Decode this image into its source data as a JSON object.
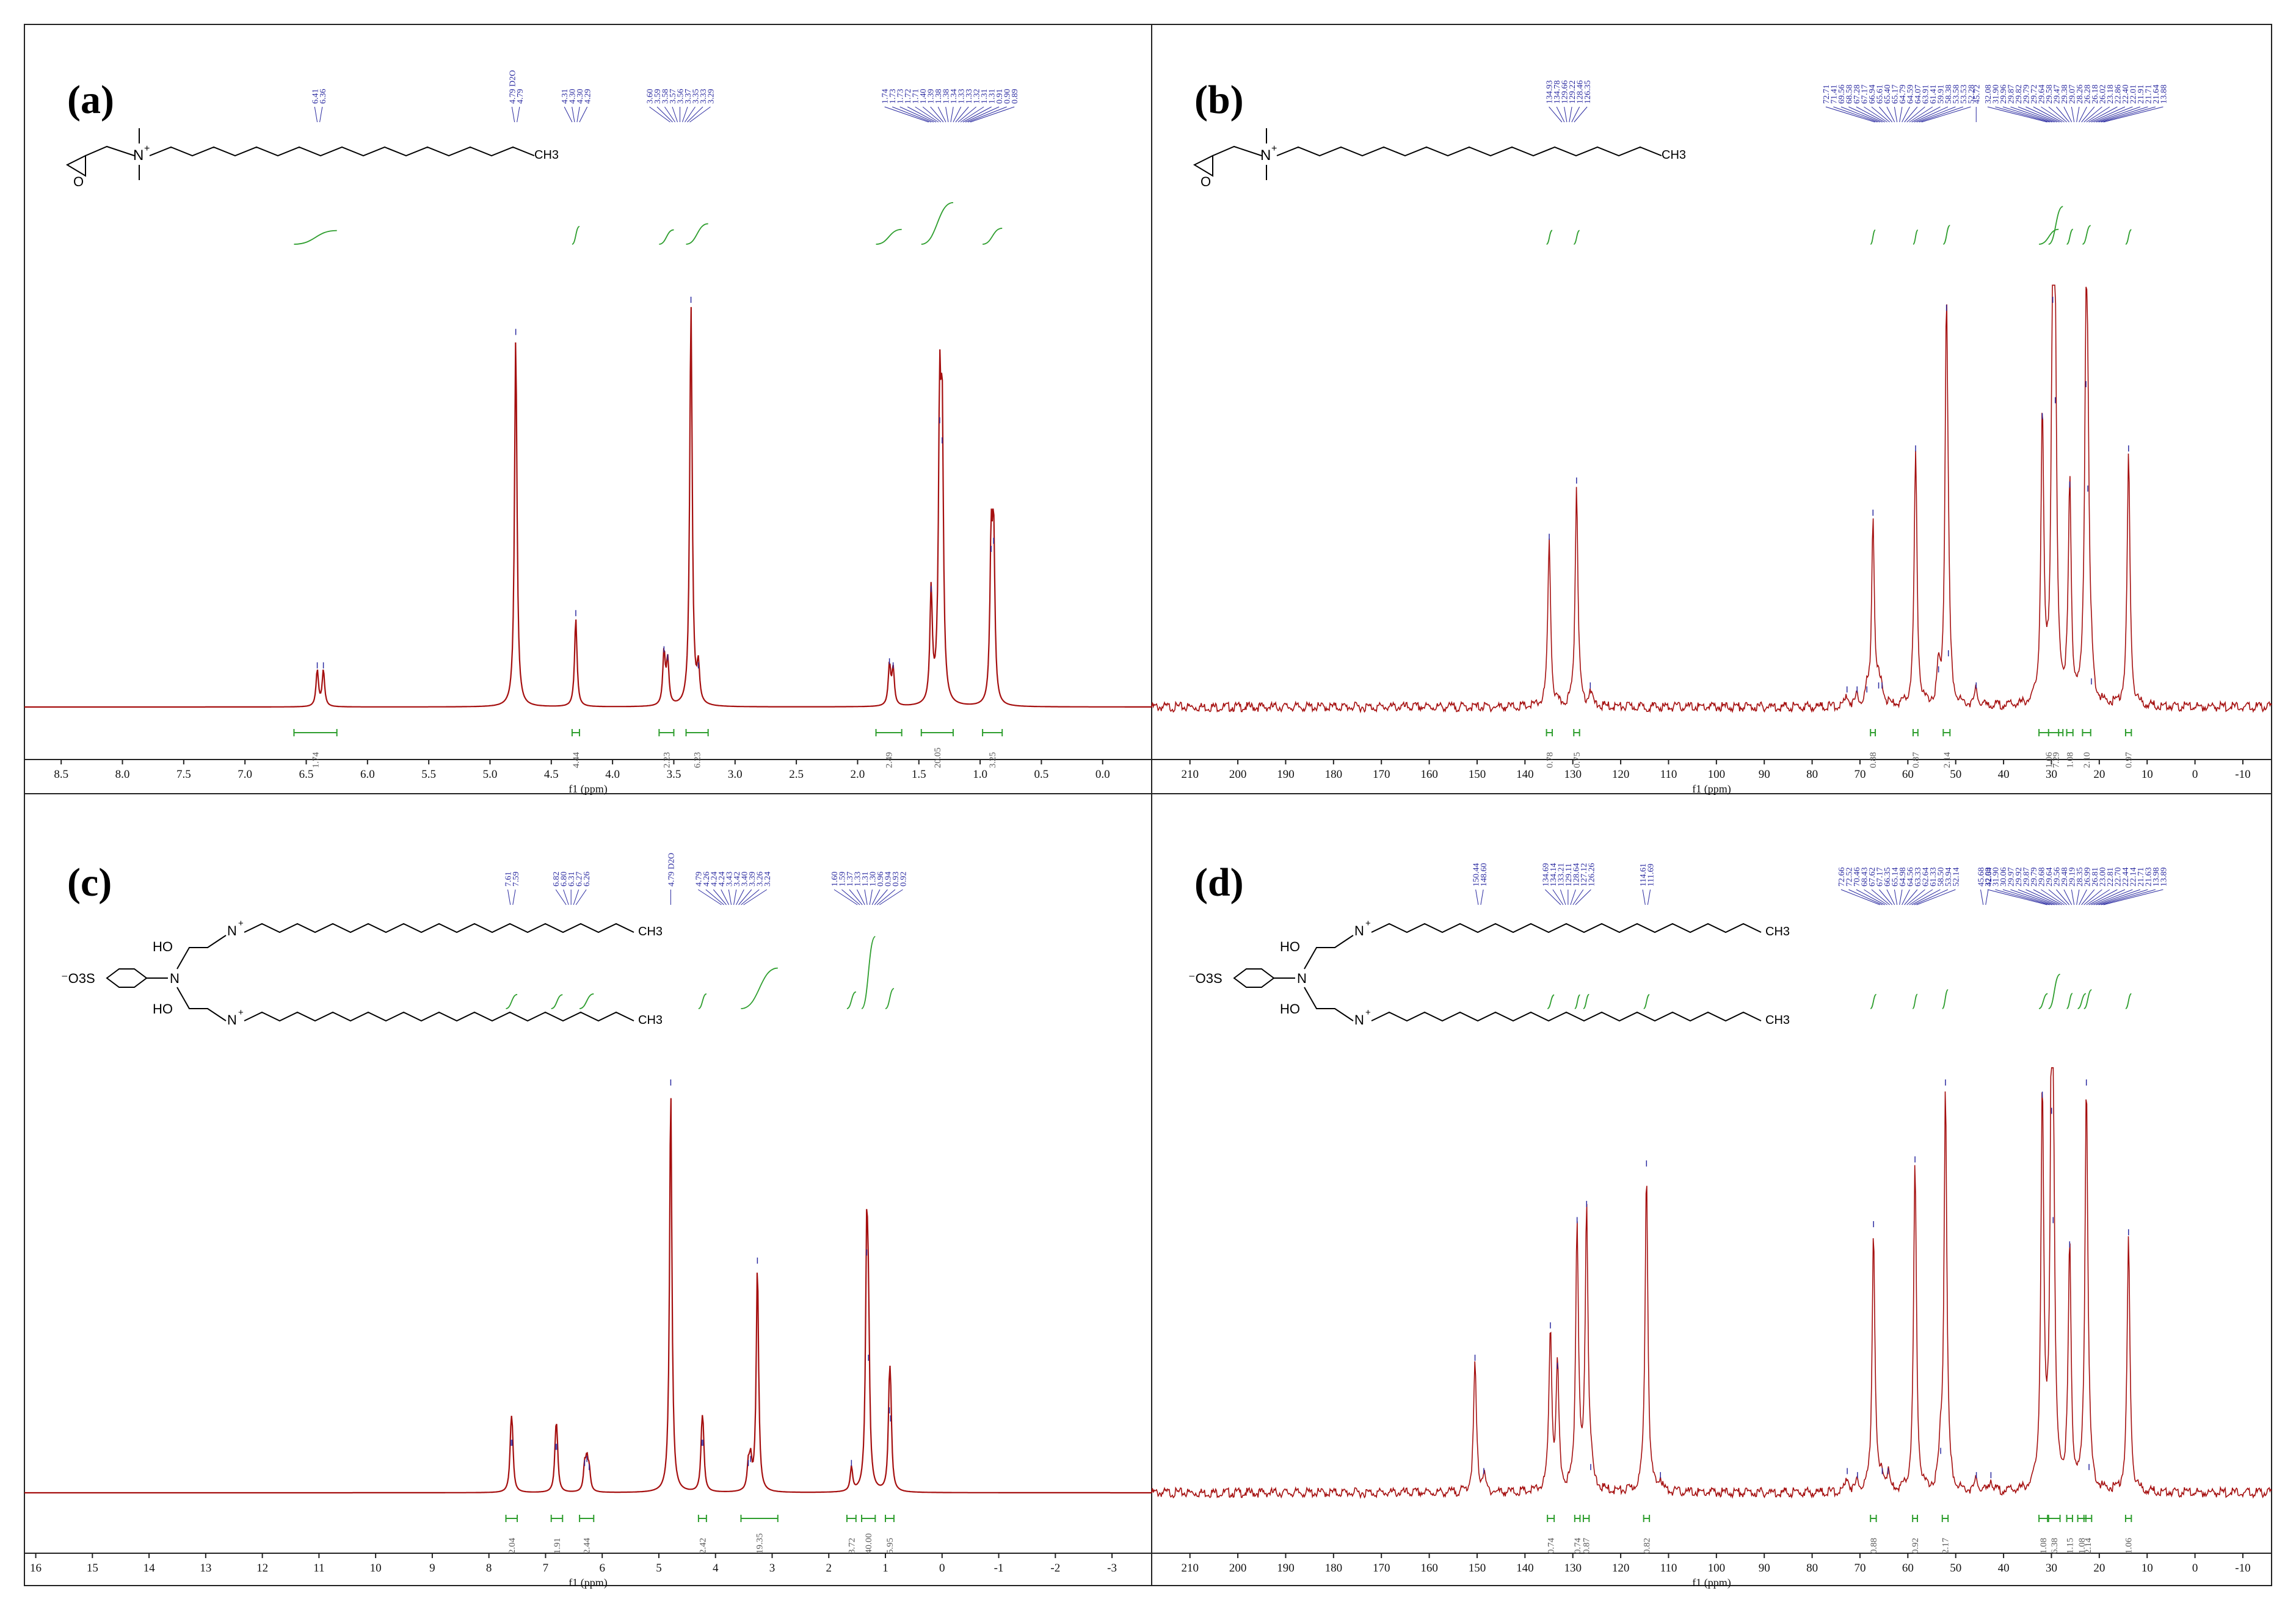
{
  "figure": {
    "xunit_label": "f1 (ppm)"
  },
  "chart_data": [
    {
      "id": "a",
      "type": "line",
      "panel_label": "(a)",
      "spectrum": "1H NMR",
      "xlabel": "f1 (ppm)",
      "xlim": [
        8.8,
        -0.4
      ],
      "xticks": [
        8.5,
        8.0,
        7.5,
        7.0,
        6.5,
        6.0,
        5.5,
        5.0,
        4.5,
        4.0,
        3.5,
        3.0,
        2.5,
        2.0,
        1.5,
        1.0,
        0.5,
        0.0
      ],
      "xtick_labels": [
        "8.5",
        "8.0",
        "7.5",
        "7.0",
        "6.5",
        "6.0",
        "5.5",
        "5.0",
        "4.5",
        "4.0",
        "3.5",
        "3.0",
        "2.5",
        "2.0",
        "1.5",
        "1.0",
        "0.5",
        "0.0"
      ],
      "ylim": [
        0,
        1
      ],
      "peaks": [
        {
          "x": 6.41,
          "h": 0.09
        },
        {
          "x": 6.36,
          "h": 0.09
        },
        {
          "x": 4.79,
          "h": 0.92
        },
        {
          "x": 4.3,
          "h": 0.22
        },
        {
          "x": 3.58,
          "h": 0.13
        },
        {
          "x": 3.55,
          "h": 0.11
        },
        {
          "x": 3.36,
          "h": 1.0
        },
        {
          "x": 3.3,
          "h": 0.09
        },
        {
          "x": 1.74,
          "h": 0.1
        },
        {
          "x": 1.71,
          "h": 0.09
        },
        {
          "x": 1.4,
          "h": 0.28
        },
        {
          "x": 1.33,
          "h": 0.7
        },
        {
          "x": 1.31,
          "h": 0.65
        },
        {
          "x": 0.91,
          "h": 0.38
        },
        {
          "x": 0.89,
          "h": 0.4
        }
      ],
      "peak_labels": [
        {
          "x": 6.4,
          "items": [
            "6.41",
            "6.36"
          ]
        },
        {
          "x": 4.79,
          "items": [
            "4.79 D2O",
            "4.79"
          ]
        },
        {
          "x": 4.3,
          "items": [
            "4.31",
            "4.30",
            "4.30",
            "4.29"
          ]
        },
        {
          "x": 3.45,
          "items": [
            "3.60",
            "3.59",
            "3.58",
            "3.57",
            "3.56",
            "3.37",
            "3.35",
            "3.33",
            "3.29"
          ]
        },
        {
          "x": 1.25,
          "items": [
            "1.74",
            "1.73",
            "1.73",
            "1.72",
            "1.71",
            "1.40",
            "1.39",
            "1.38",
            "1.38",
            "1.34",
            "1.33",
            "1.33",
            "1.32",
            "1.31",
            "1.31",
            "0.91",
            "0.90",
            "0.89"
          ]
        }
      ],
      "integrals": [
        {
          "from": 6.6,
          "to": 6.25,
          "value": "1.74"
        },
        {
          "from": 4.33,
          "to": 4.27,
          "value": "4.44"
        },
        {
          "from": 3.62,
          "to": 3.5,
          "value": "2.23"
        },
        {
          "from": 3.4,
          "to": 3.22,
          "value": "6.23"
        },
        {
          "from": 1.85,
          "to": 1.64,
          "value": "2.49"
        },
        {
          "from": 1.48,
          "to": 1.22,
          "value": "20.05"
        },
        {
          "from": 0.98,
          "to": 0.82,
          "value": "3.25"
        }
      ],
      "structure": "mono",
      "structure_text": {
        "n_plus": "N",
        "plus": "+",
        "ch3": "CH3"
      }
    },
    {
      "id": "b",
      "type": "line",
      "panel_label": "(b)",
      "spectrum": "13C NMR",
      "xlabel": "f1 (ppm)",
      "xlim": [
        218,
        -16
      ],
      "xticks": [
        210,
        200,
        190,
        180,
        170,
        160,
        150,
        140,
        130,
        120,
        110,
        100,
        90,
        80,
        70,
        60,
        50,
        40,
        30,
        20,
        10,
        0,
        -10
      ],
      "xtick_labels": [
        "210",
        "200",
        "190",
        "180",
        "170",
        "160",
        "150",
        "140",
        "130",
        "120",
        "110",
        "100",
        "90",
        "80",
        "70",
        "60",
        "50",
        "40",
        "30",
        "20",
        "10",
        "0",
        "-10"
      ],
      "ylim": [
        0,
        1
      ],
      "peaks": [
        {
          "x": 134.93,
          "h": 0.41
        },
        {
          "x": 129.22,
          "h": 0.55
        },
        {
          "x": 126.35,
          "h": 0.04
        },
        {
          "x": 72.71,
          "h": 0.03
        },
        {
          "x": 70.6,
          "h": 0.03
        },
        {
          "x": 68.56,
          "h": 0.03
        },
        {
          "x": 67.28,
          "h": 0.47
        },
        {
          "x": 66.1,
          "h": 0.04
        },
        {
          "x": 65.4,
          "h": 0.04
        },
        {
          "x": 58.38,
          "h": 0.63
        },
        {
          "x": 53.58,
          "h": 0.08
        },
        {
          "x": 51.93,
          "h": 0.98
        },
        {
          "x": 51.53,
          "h": 0.12
        },
        {
          "x": 45.72,
          "h": 0.04
        },
        {
          "x": 31.9,
          "h": 0.71
        },
        {
          "x": 29.72,
          "h": 1.0
        },
        {
          "x": 29.2,
          "h": 0.75
        },
        {
          "x": 26.17,
          "h": 0.54
        },
        {
          "x": 22.78,
          "h": 0.79
        },
        {
          "x": 22.4,
          "h": 0.53
        },
        {
          "x": 21.64,
          "h": 0.05
        },
        {
          "x": 13.88,
          "h": 0.63
        }
      ],
      "peak_labels": [
        {
          "x": 131,
          "items": [
            "134.93",
            "134.78",
            "129.66",
            "129.22",
            "128.46",
            "126.35"
          ]
        },
        {
          "x": 62,
          "items": [
            "72.71",
            "71.41",
            "69.56",
            "68.58",
            "67.28",
            "67.17",
            "66.94",
            "65.61",
            "65.40",
            "65.17",
            "64.79",
            "64.59",
            "64.07",
            "63.91",
            "61.41",
            "59.91",
            "58.38",
            "53.58",
            "53.53",
            "52.28"
          ]
        },
        {
          "x": 45.72,
          "items": [
            "45.72"
          ]
        },
        {
          "x": 25,
          "items": [
            "32.08",
            "31.90",
            "29.96",
            "29.87",
            "29.82",
            "29.79",
            "29.72",
            "29.64",
            "29.58",
            "29.47",
            "29.38",
            "29.07",
            "28.26",
            "26.28",
            "26.18",
            "26.02",
            "23.18",
            "22.86",
            "22.40",
            "22.01",
            "21.91",
            "21.71",
            "21.64",
            "13.88"
          ]
        }
      ],
      "integrals": [
        {
          "from": 135.5,
          "to": 134.3,
          "value": "0.78"
        },
        {
          "from": 129.8,
          "to": 128.6,
          "value": "0.75"
        },
        {
          "from": 67.8,
          "to": 66.8,
          "value": "0.88"
        },
        {
          "from": 58.9,
          "to": 57.9,
          "value": "0.87"
        },
        {
          "from": 52.6,
          "to": 51.2,
          "value": "2.14"
        },
        {
          "from": 32.6,
          "to": 28.5,
          "value": "1.06"
        },
        {
          "from": 30.6,
          "to": 27.6,
          "value": "7.29"
        },
        {
          "from": 26.8,
          "to": 25.5,
          "value": "1.08"
        },
        {
          "from": 23.5,
          "to": 21.8,
          "value": "2.10"
        },
        {
          "from": 14.5,
          "to": 13.3,
          "value": "0.97"
        }
      ],
      "structure": "mono",
      "structure_text": {
        "n_plus": "N",
        "plus": "+",
        "ch3": "CH3"
      }
    },
    {
      "id": "c",
      "type": "line",
      "panel_label": "(c)",
      "spectrum": "1H NMR",
      "xlabel": "f1 (ppm)",
      "xlim": [
        16.2,
        -3.7
      ],
      "xticks": [
        16,
        15,
        14,
        13,
        12,
        11,
        10,
        9,
        8,
        7,
        6,
        5,
        4,
        3,
        2,
        1,
        0,
        -1,
        -2,
        -3
      ],
      "xtick_labels": [
        "16",
        "15",
        "14",
        "13",
        "12",
        "11",
        "10",
        "9",
        "8",
        "7",
        "6",
        "5",
        "4",
        "3",
        "2",
        "1",
        "0",
        "-1",
        "-2",
        "-3"
      ],
      "ylim": [
        0,
        1
      ],
      "peaks": [
        {
          "x": 7.61,
          "h": 0.11
        },
        {
          "x": 7.59,
          "h": 0.11
        },
        {
          "x": 6.82,
          "h": 0.1
        },
        {
          "x": 6.8,
          "h": 0.1
        },
        {
          "x": 6.31,
          "h": 0.06
        },
        {
          "x": 6.27,
          "h": 0.07
        },
        {
          "x": 6.23,
          "h": 0.05
        },
        {
          "x": 4.79,
          "h": 1.0
        },
        {
          "x": 4.24,
          "h": 0.11
        },
        {
          "x": 4.22,
          "h": 0.11
        },
        {
          "x": 3.42,
          "h": 0.06
        },
        {
          "x": 3.38,
          "h": 0.07
        },
        {
          "x": 3.26,
          "h": 0.56
        },
        {
          "x": 1.6,
          "h": 0.06
        },
        {
          "x": 1.33,
          "h": 0.58
        },
        {
          "x": 1.3,
          "h": 0.32
        },
        {
          "x": 0.93,
          "h": 0.19
        },
        {
          "x": 0.91,
          "h": 0.17
        }
      ],
      "peak_labels": [
        {
          "x": 7.6,
          "items": [
            "7.61",
            "7.59"
          ]
        },
        {
          "x": 6.55,
          "items": [
            "6.82",
            "6.80",
            "6.31",
            "6.27",
            "6.26"
          ]
        },
        {
          "x": 4.79,
          "items": [
            "4.79 D2O"
          ]
        },
        {
          "x": 3.7,
          "items": [
            "4.79",
            "4.26",
            "4.24",
            "4.24",
            "3.43",
            "3.42",
            "3.40",
            "3.39",
            "3.26",
            "3.24"
          ]
        },
        {
          "x": 1.3,
          "items": [
            "1.60",
            "1.59",
            "1.37",
            "1.33",
            "1.31",
            "1.30",
            "0.96",
            "0.94",
            "0.93",
            "0.92"
          ]
        }
      ],
      "integrals": [
        {
          "from": 7.7,
          "to": 7.5,
          "value": "2.04"
        },
        {
          "from": 6.9,
          "to": 6.7,
          "value": "1.91"
        },
        {
          "from": 6.4,
          "to": 6.15,
          "value": "2.44"
        },
        {
          "from": 4.3,
          "to": 4.16,
          "value": "2.42"
        },
        {
          "from": 3.55,
          "to": 2.9,
          "value": "19.35"
        },
        {
          "from": 1.68,
          "to": 1.52,
          "value": "3.72"
        },
        {
          "from": 1.42,
          "to": 1.18,
          "value": "40.00"
        },
        {
          "from": 1.0,
          "to": 0.85,
          "value": "5.95"
        }
      ],
      "structure": "gemini",
      "structure_text": {
        "n": "N",
        "ho": "HO",
        "so3": "⁻O3S",
        "plus": "+",
        "ch3": "CH3"
      }
    },
    {
      "id": "d",
      "type": "line",
      "panel_label": "(d)",
      "spectrum": "13C NMR",
      "xlabel": "f1 (ppm)",
      "xlim": [
        218,
        -16
      ],
      "xticks": [
        210,
        200,
        190,
        180,
        170,
        160,
        150,
        140,
        130,
        120,
        110,
        100,
        90,
        80,
        70,
        60,
        50,
        40,
        30,
        20,
        10,
        0,
        -10
      ],
      "xtick_labels": [
        "210",
        "200",
        "190",
        "180",
        "170",
        "160",
        "150",
        "140",
        "130",
        "120",
        "110",
        "100",
        "90",
        "80",
        "70",
        "60",
        "50",
        "40",
        "30",
        "20",
        "10",
        "0",
        "-10"
      ],
      "ylim": [
        0,
        1
      ],
      "peaks": [
        {
          "x": 150.44,
          "h": 0.32
        },
        {
          "x": 148.6,
          "h": 0.04
        },
        {
          "x": 134.69,
          "h": 0.4
        },
        {
          "x": 133.21,
          "h": 0.3
        },
        {
          "x": 129.11,
          "h": 0.66
        },
        {
          "x": 127.12,
          "h": 0.7
        },
        {
          "x": 126.26,
          "h": 0.05
        },
        {
          "x": 114.61,
          "h": 0.8
        },
        {
          "x": 111.69,
          "h": 0.03
        },
        {
          "x": 72.66,
          "h": 0.04
        },
        {
          "x": 70.52,
          "h": 0.03
        },
        {
          "x": 67.17,
          "h": 0.65
        },
        {
          "x": 65.35,
          "h": 0.04
        },
        {
          "x": 64.14,
          "h": 0.04
        },
        {
          "x": 58.5,
          "h": 0.81
        },
        {
          "x": 53.14,
          "h": 0.09
        },
        {
          "x": 52.14,
          "h": 1.0
        },
        {
          "x": 45.68,
          "h": 0.03
        },
        {
          "x": 42.64,
          "h": 0.03
        },
        {
          "x": 31.9,
          "h": 0.97
        },
        {
          "x": 29.97,
          "h": 0.93
        },
        {
          "x": 29.64,
          "h": 0.66
        },
        {
          "x": 26.19,
          "h": 0.6
        },
        {
          "x": 22.7,
          "h": 1.0
        },
        {
          "x": 22.14,
          "h": 0.05
        },
        {
          "x": 13.89,
          "h": 0.63
        }
      ],
      "peak_labels": [
        {
          "x": 149.5,
          "items": [
            "150.44",
            "148.60"
          ]
        },
        {
          "x": 131,
          "items": [
            "134.69",
            "134.14",
            "133.21",
            "129.11",
            "128.64",
            "127.12",
            "126.26"
          ]
        },
        {
          "x": 114.61,
          "items": [
            "114.61",
            "111.69"
          ]
        },
        {
          "x": 62,
          "items": [
            "72.66",
            "72.52",
            "70.46",
            "68.43",
            "67.62",
            "67.17",
            "66.35",
            "65.14",
            "64.98",
            "64.56",
            "63.33",
            "62.64",
            "61.33",
            "58.50",
            "53.94",
            "52.14"
          ]
        },
        {
          "x": 44,
          "items": [
            "45.68",
            "42.64"
          ]
        },
        {
          "x": 25,
          "items": [
            "32.09",
            "31.90",
            "30.06",
            "29.97",
            "29.92",
            "29.87",
            "29.79",
            "29.68",
            "29.64",
            "29.56",
            "29.48",
            "29.19",
            "28.35",
            "26.99",
            "26.81",
            "23.00",
            "22.81",
            "22.70",
            "22.44",
            "22.14",
            "21.71",
            "21.63",
            "13.98",
            "13.89"
          ]
        }
      ],
      "integrals": [
        {
          "from": 135.3,
          "to": 133.9,
          "value": "0.74"
        },
        {
          "from": 129.6,
          "to": 128.5,
          "value": "0.74"
        },
        {
          "from": 127.8,
          "to": 126.6,
          "value": "0.87"
        },
        {
          "from": 115.2,
          "to": 114.0,
          "value": "0.82"
        },
        {
          "from": 67.8,
          "to": 66.6,
          "value": "0.88"
        },
        {
          "from": 59.0,
          "to": 58.0,
          "value": "0.92"
        },
        {
          "from": 52.8,
          "to": 51.6,
          "value": "2.17"
        },
        {
          "from": 32.6,
          "to": 30.8,
          "value": "1.08"
        },
        {
          "from": 30.6,
          "to": 28.2,
          "value": "6.38"
        },
        {
          "from": 26.8,
          "to": 25.6,
          "value": "1.15"
        },
        {
          "from": 24.5,
          "to": 22.8,
          "value": "1.08"
        },
        {
          "from": 23.2,
          "to": 21.6,
          "value": "2.14"
        },
        {
          "from": 14.5,
          "to": 13.3,
          "value": "1.06"
        }
      ],
      "structure": "gemini",
      "structure_text": {
        "n": "N",
        "ho": "HO",
        "so3": "⁻O3S",
        "plus": "+",
        "ch3": "CH3"
      }
    }
  ]
}
